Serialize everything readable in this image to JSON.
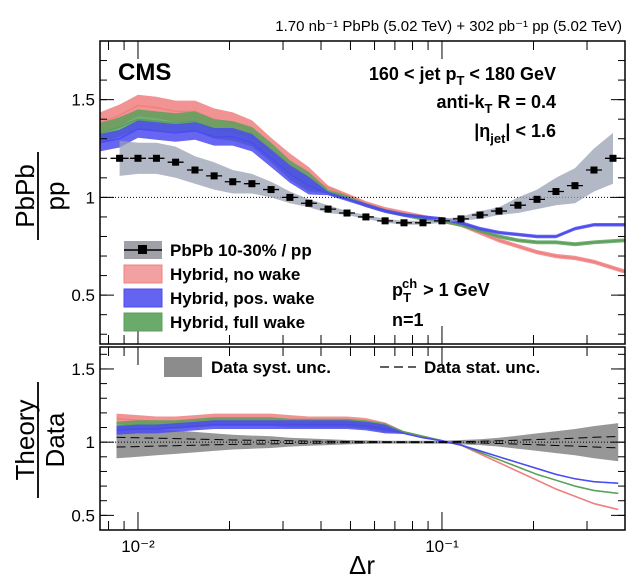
{
  "chart_data": [
    {
      "type": "line",
      "panel": "upper",
      "lumi_label": "1.70 nb⁻¹ PbPb (5.02 TeV) + 302 pb⁻¹ pp (5.02 TeV)",
      "experiment": "CMS",
      "labels": {
        "jet_pt": "160 < jet p_T < 180 GeV",
        "algo": "anti-k_T R = 0.4",
        "eta": "|η_jet| < 1.6",
        "track_pt": "p_T^ch > 1 GeV",
        "n": "n=1"
      },
      "ylabel_num": "PbPb",
      "ylabel_den": "pp",
      "xlabel": "Δr",
      "xscale": "log",
      "xlim": [
        0.0075,
        0.4
      ],
      "ylim": [
        0.25,
        1.8
      ],
      "yticks": [
        0.5,
        1,
        1.5
      ],
      "reference_line": 1,
      "legend": [
        {
          "name": "PbPb 10-30% / pp",
          "style": "marker"
        },
        {
          "name": "Hybrid, no wake",
          "color": "#f08080"
        },
        {
          "name": "Hybrid, pos. wake",
          "color": "#4b4bf0"
        },
        {
          "name": "Hybrid, full wake",
          "color": "#5aa05a"
        }
      ],
      "series": [
        {
          "name": "PbPb 10-30% / pp",
          "x": [
            0.0087,
            0.01,
            0.0115,
            0.0133,
            0.0154,
            0.0178,
            0.0205,
            0.0237,
            0.0274,
            0.0316,
            0.0365,
            0.0422,
            0.0487,
            0.0562,
            0.065,
            0.075,
            0.0866,
            0.1,
            0.1155,
            0.1334,
            0.154,
            0.1778,
            0.2054,
            0.2371,
            0.2738,
            0.3162,
            0.3652
          ],
          "values": [
            1.2,
            1.2,
            1.2,
            1.18,
            1.14,
            1.11,
            1.08,
            1.07,
            1.04,
            1.0,
            0.97,
            0.94,
            0.92,
            0.9,
            0.88,
            0.87,
            0.87,
            0.88,
            0.89,
            0.91,
            0.93,
            0.96,
            0.99,
            1.03,
            1.06,
            1.14,
            1.2
          ],
          "syst": [
            0.09,
            0.08,
            0.08,
            0.08,
            0.07,
            0.07,
            0.06,
            0.05,
            0.04,
            0.03,
            0.02,
            0.02,
            0.01,
            0.01,
            0.01,
            0.01,
            0.01,
            0.01,
            0.01,
            0.02,
            0.02,
            0.04,
            0.05,
            0.07,
            0.09,
            0.11,
            0.13
          ]
        },
        {
          "name": "Hybrid, no wake",
          "color": "#f08080",
          "x": [
            0.0075,
            0.0087,
            0.01,
            0.0115,
            0.0133,
            0.0154,
            0.0178,
            0.0205,
            0.0237,
            0.0274,
            0.0316,
            0.0365,
            0.0422,
            0.0487,
            0.0562,
            0.065,
            0.075,
            0.0866,
            0.1,
            0.1155,
            0.1334,
            0.154,
            0.1778,
            0.2054,
            0.2371,
            0.2738,
            0.3162,
            0.4
          ],
          "values": [
            1.38,
            1.42,
            1.47,
            1.46,
            1.44,
            1.44,
            1.4,
            1.38,
            1.34,
            1.25,
            1.17,
            1.1,
            1.05,
            1.01,
            0.97,
            0.94,
            0.92,
            0.9,
            0.88,
            0.86,
            0.82,
            0.78,
            0.75,
            0.72,
            0.7,
            0.69,
            0.67,
            0.62
          ]
        },
        {
          "name": "Hybrid, pos. wake",
          "color": "#4b4bf0",
          "x": [
            0.0075,
            0.0087,
            0.01,
            0.0115,
            0.0133,
            0.0154,
            0.0178,
            0.0205,
            0.0237,
            0.0274,
            0.0316,
            0.0365,
            0.0422,
            0.0487,
            0.0562,
            0.065,
            0.075,
            0.0866,
            0.1,
            0.1155,
            0.1334,
            0.154,
            0.1778,
            0.2054,
            0.2371,
            0.2738,
            0.3162,
            0.4
          ],
          "values": [
            1.28,
            1.3,
            1.35,
            1.34,
            1.33,
            1.34,
            1.31,
            1.31,
            1.28,
            1.2,
            1.12,
            1.06,
            1.02,
            0.99,
            0.96,
            0.93,
            0.91,
            0.9,
            0.89,
            0.87,
            0.84,
            0.82,
            0.81,
            0.8,
            0.8,
            0.84,
            0.86,
            0.86
          ]
        },
        {
          "name": "Hybrid, full wake",
          "color": "#5aa05a",
          "x": [
            0.0075,
            0.0087,
            0.01,
            0.0115,
            0.0133,
            0.0154,
            0.0178,
            0.0205,
            0.0237,
            0.0274,
            0.0316,
            0.0365,
            0.0422,
            0.0487,
            0.0562,
            0.065,
            0.075,
            0.0866,
            0.1,
            0.1155,
            0.1334,
            0.154,
            0.1778,
            0.2054,
            0.2371,
            0.2738,
            0.3162,
            0.4
          ],
          "values": [
            1.33,
            1.36,
            1.4,
            1.39,
            1.38,
            1.39,
            1.35,
            1.34,
            1.31,
            1.23,
            1.14,
            1.08,
            1.03,
            1.0,
            0.96,
            0.93,
            0.91,
            0.89,
            0.88,
            0.86,
            0.83,
            0.8,
            0.78,
            0.77,
            0.77,
            0.76,
            0.77,
            0.78
          ]
        }
      ]
    },
    {
      "type": "line",
      "panel": "lower",
      "ylabel_num": "Theory",
      "ylabel_den": "Data",
      "xlabel": "Δr",
      "xscale": "log",
      "xlim": [
        0.0075,
        0.4
      ],
      "ylim": [
        0.4,
        1.65
      ],
      "yticks": [
        0.5,
        1,
        1.5
      ],
      "xtick_labels": [
        "10⁻²",
        "10⁻¹"
      ],
      "reference_line": 1,
      "legend": [
        {
          "name": "Data syst. unc.",
          "style": "band"
        },
        {
          "name": "Data stat. unc.",
          "style": "dashed"
        }
      ],
      "series": [
        {
          "name": "Data syst. unc.",
          "x": [
            0.0085,
            0.01,
            0.0115,
            0.0133,
            0.0154,
            0.0178,
            0.0205,
            0.0237,
            0.0274,
            0.0316,
            0.0365,
            0.0422,
            0.0487,
            0.0562,
            0.065,
            0.075,
            0.0866,
            0.1,
            0.1155,
            0.1334,
            0.154,
            0.1778,
            0.2054,
            0.2371,
            0.2738,
            0.3162,
            0.38
          ],
          "values": [
            1,
            1,
            1,
            1,
            1,
            1,
            1,
            1,
            1,
            1,
            1,
            1,
            1,
            1,
            1,
            1,
            1,
            1,
            1,
            1,
            1,
            1,
            1,
            1,
            1,
            1,
            1
          ],
          "halfwidth": [
            0.11,
            0.1,
            0.09,
            0.08,
            0.07,
            0.06,
            0.05,
            0.045,
            0.04,
            0.03,
            0.025,
            0.02,
            0.015,
            0.012,
            0.01,
            0.01,
            0.01,
            0.01,
            0.015,
            0.02,
            0.03,
            0.045,
            0.06,
            0.075,
            0.09,
            0.11,
            0.13
          ]
        },
        {
          "name": "Hybrid, no wake",
          "color": "#f08080",
          "x": [
            0.0085,
            0.01,
            0.0115,
            0.0133,
            0.0154,
            0.0178,
            0.0205,
            0.0237,
            0.0274,
            0.0316,
            0.0365,
            0.0422,
            0.0487,
            0.0562,
            0.065,
            0.075,
            0.0866,
            0.1,
            0.1155,
            0.1334,
            0.154,
            0.1778,
            0.2054,
            0.2371,
            0.2738,
            0.3162,
            0.38
          ],
          "values": [
            1.16,
            1.15,
            1.14,
            1.14,
            1.15,
            1.16,
            1.16,
            1.16,
            1.16,
            1.15,
            1.14,
            1.14,
            1.14,
            1.13,
            1.1,
            1.07,
            1.04,
            1.01,
            0.98,
            0.92,
            0.86,
            0.8,
            0.74,
            0.68,
            0.63,
            0.58,
            0.54
          ]
        },
        {
          "name": "Hybrid, pos. wake",
          "color": "#4b4bf0",
          "x": [
            0.0085,
            0.01,
            0.0115,
            0.0133,
            0.0154,
            0.0178,
            0.0205,
            0.0237,
            0.0274,
            0.0316,
            0.0365,
            0.0422,
            0.0487,
            0.0562,
            0.065,
            0.075,
            0.0866,
            0.1,
            0.1155,
            0.1334,
            0.154,
            0.1778,
            0.2054,
            0.2371,
            0.2738,
            0.3162,
            0.38
          ],
          "values": [
            1.08,
            1.09,
            1.09,
            1.1,
            1.11,
            1.12,
            1.12,
            1.12,
            1.12,
            1.12,
            1.12,
            1.12,
            1.12,
            1.11,
            1.09,
            1.06,
            1.03,
            1.01,
            0.98,
            0.94,
            0.9,
            0.86,
            0.82,
            0.78,
            0.75,
            0.73,
            0.72
          ]
        },
        {
          "name": "Hybrid, full wake",
          "color": "#5aa05a",
          "x": [
            0.0085,
            0.01,
            0.0115,
            0.0133,
            0.0154,
            0.0178,
            0.0205,
            0.0237,
            0.0274,
            0.0316,
            0.0365,
            0.0422,
            0.0487,
            0.0562,
            0.065,
            0.075,
            0.0866,
            0.1,
            0.1155,
            0.1334,
            0.154,
            0.1778,
            0.2054,
            0.2371,
            0.2738,
            0.3162,
            0.38
          ],
          "values": [
            1.11,
            1.12,
            1.12,
            1.12,
            1.13,
            1.14,
            1.14,
            1.14,
            1.14,
            1.13,
            1.13,
            1.13,
            1.13,
            1.12,
            1.1,
            1.07,
            1.04,
            1.01,
            0.98,
            0.93,
            0.88,
            0.83,
            0.78,
            0.74,
            0.7,
            0.67,
            0.65
          ]
        }
      ]
    }
  ],
  "tick_labels": {
    "upper_y": [
      "0.5",
      "1",
      "1.5"
    ],
    "lower_y": [
      "0.5",
      "1",
      "1.5"
    ]
  },
  "colors": {
    "syst_band": "#8c8c8c",
    "upper_syst_band": "#9aa0b4",
    "no_wake": "#f08080",
    "pos_wake": "#4b4bf0",
    "full_wake": "#5aa05a"
  }
}
